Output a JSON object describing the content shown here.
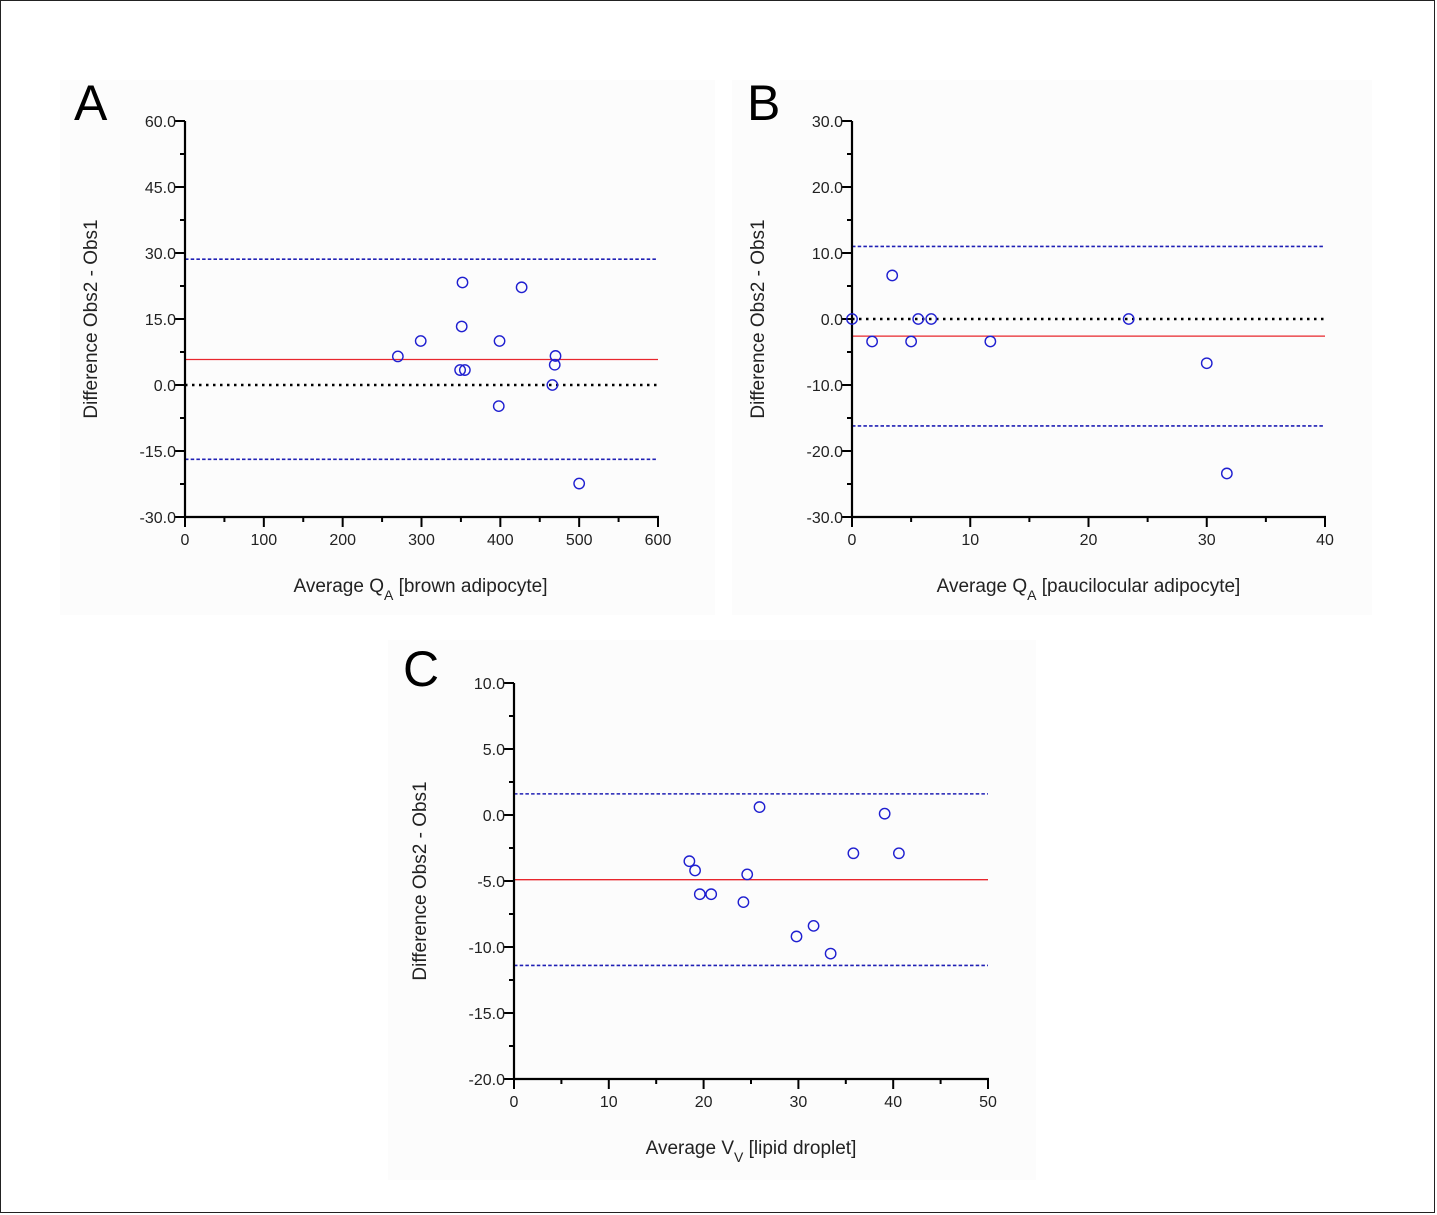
{
  "chart_data": [
    {
      "panel": "A",
      "type": "scatter",
      "title": "",
      "xlabel": {
        "main": "Average Q",
        "sub": "A",
        "suffix": " [brown adipocyte]"
      },
      "ylabel": "Difference Obs2 - Obs1",
      "xlim": [
        0,
        600
      ],
      "ylim": [
        -30,
        60
      ],
      "xticks": [
        0,
        100,
        200,
        300,
        400,
        500,
        600
      ],
      "xtick_labels": [
        "0",
        "100",
        "200",
        "300",
        "400",
        "500",
        "600"
      ],
      "yticks": [
        -30,
        -15,
        0,
        15,
        30,
        45,
        60
      ],
      "ytick_labels": [
        "-30.0",
        "-15.0",
        "0.0",
        "15.0",
        "30.0",
        "45.0",
        "60.0"
      ],
      "x_minor_step": 50,
      "y_minor_step": 7.5,
      "points": [
        {
          "x": 270,
          "y": 6.5
        },
        {
          "x": 299,
          "y": 10.0
        },
        {
          "x": 349,
          "y": 3.4
        },
        {
          "x": 351,
          "y": 13.3
        },
        {
          "x": 352,
          "y": 23.3
        },
        {
          "x": 355,
          "y": 3.4
        },
        {
          "x": 398,
          "y": -4.8
        },
        {
          "x": 399,
          "y": 10.0
        },
        {
          "x": 427,
          "y": 22.2
        },
        {
          "x": 466,
          "y": 0.0
        },
        {
          "x": 469,
          "y": 4.6
        },
        {
          "x": 470,
          "y": 6.6
        },
        {
          "x": 500,
          "y": -22.4
        }
      ],
      "lines": [
        {
          "y": 28.6,
          "kind": "limit",
          "color": "#1f1fb4"
        },
        {
          "y": 5.8,
          "kind": "mean",
          "color": "#e8262d"
        },
        {
          "y": 0.0,
          "kind": "zero",
          "color": "#000000"
        },
        {
          "y": -16.9,
          "kind": "limit",
          "color": "#1f1fb4"
        }
      ]
    },
    {
      "panel": "B",
      "type": "scatter",
      "title": "",
      "xlabel": {
        "main": "Average Q",
        "sub": "A",
        "suffix": " [paucilocular adipocyte]"
      },
      "ylabel": "Difference Obs2 - Obs1",
      "xlim": [
        0,
        40
      ],
      "ylim": [
        -30,
        30
      ],
      "xticks": [
        0,
        10,
        20,
        30,
        40
      ],
      "xtick_labels": [
        "0",
        "10",
        "20",
        "30",
        "40"
      ],
      "yticks": [
        -30,
        -20,
        -10,
        0,
        10,
        20,
        30
      ],
      "ytick_labels": [
        "-30.0",
        "-20.0",
        "-10.0",
        "0.0",
        "10.0",
        "20.0",
        "30.0"
      ],
      "x_minor_step": 5,
      "y_minor_step": 5,
      "points": [
        {
          "x": 0.0,
          "y": 0.0
        },
        {
          "x": 1.7,
          "y": -3.4
        },
        {
          "x": 3.4,
          "y": 6.6
        },
        {
          "x": 5.0,
          "y": -3.4
        },
        {
          "x": 5.6,
          "y": 0.0
        },
        {
          "x": 6.7,
          "y": 0.0
        },
        {
          "x": 11.7,
          "y": -3.4
        },
        {
          "x": 23.4,
          "y": 0.0
        },
        {
          "x": 30.0,
          "y": -6.7
        },
        {
          "x": 31.7,
          "y": -23.4
        }
      ],
      "lines": [
        {
          "y": 11.0,
          "kind": "limit",
          "color": "#1f1fb4"
        },
        {
          "y": 0.0,
          "kind": "zero",
          "color": "#000000"
        },
        {
          "y": -2.6,
          "kind": "mean",
          "color": "#e8262d"
        },
        {
          "y": -16.2,
          "kind": "limit",
          "color": "#1f1fb4"
        }
      ]
    },
    {
      "panel": "C",
      "type": "scatter",
      "title": "",
      "xlabel": {
        "main": "Average V",
        "sub": "V",
        "suffix": " [lipid droplet]"
      },
      "ylabel": "Difference Obs2 - Obs1",
      "xlim": [
        0,
        50
      ],
      "ylim": [
        -20,
        10
      ],
      "xticks": [
        0,
        10,
        20,
        30,
        40,
        50
      ],
      "xtick_labels": [
        "0",
        "10",
        "20",
        "30",
        "40",
        "50"
      ],
      "yticks": [
        -20,
        -15,
        -10,
        -5,
        0,
        5,
        10
      ],
      "ytick_labels": [
        "-20.0",
        "-15.0",
        "-10.0",
        "-5.0",
        "0.0",
        "5.0",
        "10.0"
      ],
      "x_minor_step": 5,
      "y_minor_step": 2.5,
      "points": [
        {
          "x": 18.5,
          "y": -3.5
        },
        {
          "x": 19.1,
          "y": -4.2
        },
        {
          "x": 19.6,
          "y": -6.0
        },
        {
          "x": 20.8,
          "y": -6.0
        },
        {
          "x": 24.2,
          "y": -6.6
        },
        {
          "x": 24.6,
          "y": -4.5
        },
        {
          "x": 25.9,
          "y": 0.6
        },
        {
          "x": 29.8,
          "y": -9.2
        },
        {
          "x": 31.6,
          "y": -8.4
        },
        {
          "x": 33.4,
          "y": -10.5
        },
        {
          "x": 35.8,
          "y": -2.9
        },
        {
          "x": 39.1,
          "y": 0.1
        },
        {
          "x": 40.6,
          "y": -2.9
        }
      ],
      "lines": [
        {
          "y": 1.6,
          "kind": "limit",
          "color": "#1f1fb4"
        },
        {
          "y": -4.9,
          "kind": "mean",
          "color": "#e8262d"
        },
        {
          "y": -11.4,
          "kind": "limit",
          "color": "#1f1fb4"
        }
      ]
    }
  ],
  "colors": {
    "marker": "#1f1fd0",
    "axis": "#000000"
  }
}
